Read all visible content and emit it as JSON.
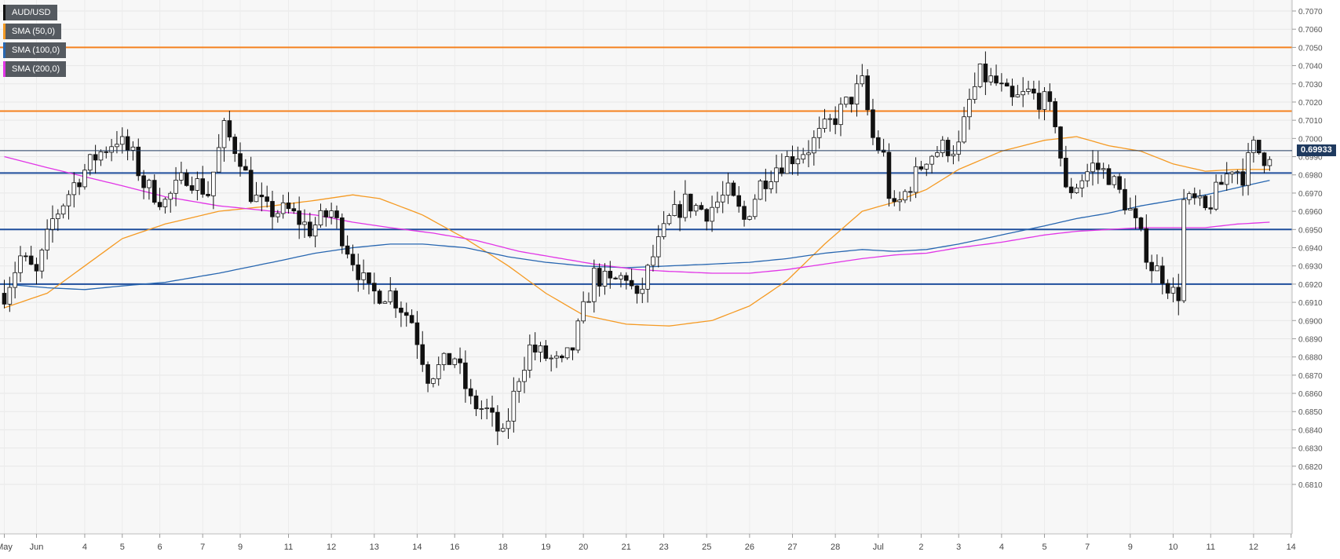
{
  "chart_data": {
    "type": "candlestick",
    "instrument": "AUD/USD",
    "timeframe_note": "4-hour candles",
    "ylim": [
      0.6805,
      0.7075
    ],
    "y_ticks": [
      "0.7070",
      "0.7060",
      "0.7050",
      "0.7040",
      "0.7030",
      "0.7020",
      "0.7010",
      "0.7000",
      "0.6990",
      "0.6980",
      "0.6970",
      "0.6960",
      "0.6950",
      "0.6940",
      "0.6930",
      "0.6920",
      "0.6910",
      "0.6900",
      "0.6890",
      "0.6880",
      "0.6870",
      "0.6860",
      "0.6850",
      "0.6840",
      "0.6830",
      "0.6820",
      "0.6810"
    ],
    "x_ticks": [
      {
        "label": "May",
        "i": 0
      },
      {
        "label": "Jun",
        "i": 6
      },
      {
        "label": "4",
        "i": 15
      },
      {
        "label": "5",
        "i": 22
      },
      {
        "label": "6",
        "i": 29
      },
      {
        "label": "7",
        "i": 37
      },
      {
        "label": "9",
        "i": 44
      },
      {
        "label": "11",
        "i": 53
      },
      {
        "label": "12",
        "i": 61
      },
      {
        "label": "13",
        "i": 69
      },
      {
        "label": "14",
        "i": 77
      },
      {
        "label": "16",
        "i": 84
      },
      {
        "label": "18",
        "i": 93
      },
      {
        "label": "19",
        "i": 101
      },
      {
        "label": "20",
        "i": 108
      },
      {
        "label": "21",
        "i": 116
      },
      {
        "label": "23",
        "i": 123
      },
      {
        "label": "25",
        "i": 131
      },
      {
        "label": "26",
        "i": 139
      },
      {
        "label": "27",
        "i": 147
      },
      {
        "label": "28",
        "i": 155
      },
      {
        "label": "Jul",
        "i": 163
      },
      {
        "label": "2",
        "i": 171
      },
      {
        "label": "3",
        "i": 178
      },
      {
        "label": "4",
        "i": 186
      },
      {
        "label": "5",
        "i": 194
      },
      {
        "label": "7",
        "i": 202
      },
      {
        "label": "9",
        "i": 210
      },
      {
        "label": "10",
        "i": 218
      },
      {
        "label": "11",
        "i": 225
      },
      {
        "label": "12",
        "i": 233
      },
      {
        "label": "14",
        "i": 240
      }
    ],
    "candle_count": 237,
    "path_points": [
      [
        0,
        0.6915
      ],
      [
        3,
        0.6935
      ],
      [
        6,
        0.6925
      ],
      [
        9,
        0.6955
      ],
      [
        13,
        0.6975
      ],
      [
        17,
        0.699
      ],
      [
        21,
        0.7
      ],
      [
        24,
        0.699
      ],
      [
        26,
        0.6975
      ],
      [
        30,
        0.6965
      ],
      [
        34,
        0.698
      ],
      [
        38,
        0.697
      ],
      [
        41,
        0.7005
      ],
      [
        44,
        0.699
      ],
      [
        46,
        0.697
      ],
      [
        49,
        0.696
      ],
      [
        53,
        0.696
      ],
      [
        57,
        0.695
      ],
      [
        61,
        0.696
      ],
      [
        64,
        0.694
      ],
      [
        68,
        0.6915
      ],
      [
        72,
        0.6915
      ],
      [
        76,
        0.69
      ],
      [
        79,
        0.687
      ],
      [
        84,
        0.688
      ],
      [
        87,
        0.6855
      ],
      [
        90,
        0.685
      ],
      [
        93,
        0.6835
      ],
      [
        96,
        0.687
      ],
      [
        98,
        0.6885
      ],
      [
        101,
        0.688
      ],
      [
        104,
        0.6875
      ],
      [
        106,
        0.6885
      ],
      [
        108,
        0.6905
      ],
      [
        110,
        0.6925
      ],
      [
        113,
        0.692
      ],
      [
        116,
        0.6925
      ],
      [
        118,
        0.691
      ],
      [
        121,
        0.6935
      ],
      [
        124,
        0.6955
      ],
      [
        127,
        0.6965
      ],
      [
        131,
        0.696
      ],
      [
        135,
        0.697
      ],
      [
        138,
        0.6955
      ],
      [
        141,
        0.6975
      ],
      [
        144,
        0.6985
      ],
      [
        147,
        0.699
      ],
      [
        150,
        0.6995
      ],
      [
        153,
        0.7005
      ],
      [
        156,
        0.7015
      ],
      [
        160,
        0.703
      ],
      [
        162,
        0.7
      ],
      [
        164,
        0.699
      ],
      [
        165,
        0.697
      ],
      [
        166,
        0.696
      ],
      [
        169,
        0.6975
      ],
      [
        172,
        0.699
      ],
      [
        175,
        0.6995
      ],
      [
        178,
        0.6995
      ],
      [
        180,
        0.702
      ],
      [
        182,
        0.7035
      ],
      [
        185,
        0.703
      ],
      [
        188,
        0.702
      ],
      [
        191,
        0.7025
      ],
      [
        194,
        0.702
      ],
      [
        196,
        0.701
      ],
      [
        198,
        0.697
      ],
      [
        200,
        0.6975
      ],
      [
        203,
        0.6985
      ],
      [
        206,
        0.698
      ],
      [
        208,
        0.697
      ],
      [
        210,
        0.696
      ],
      [
        212,
        0.6945
      ],
      [
        214,
        0.693
      ],
      [
        216,
        0.6925
      ],
      [
        218,
        0.6915
      ],
      [
        219,
        0.6915
      ],
      [
        220,
        0.6965
      ],
      [
        222,
        0.6965
      ],
      [
        224,
        0.696
      ],
      [
        227,
        0.6975
      ],
      [
        229,
        0.6985
      ],
      [
        231,
        0.698
      ],
      [
        233,
        0.6995
      ],
      [
        235,
        0.699
      ],
      [
        236,
        0.6993
      ]
    ],
    "series": [
      {
        "name": "SMA (50,0)",
        "color": "#f59a23",
        "points": [
          [
            0,
            0.6907
          ],
          [
            8,
            0.6915
          ],
          [
            15,
            0.693
          ],
          [
            22,
            0.6945
          ],
          [
            30,
            0.6953
          ],
          [
            40,
            0.696
          ],
          [
            50,
            0.6963
          ],
          [
            58,
            0.6966
          ],
          [
            65,
            0.6969
          ],
          [
            70,
            0.6967
          ],
          [
            78,
            0.6958
          ],
          [
            86,
            0.6945
          ],
          [
            94,
            0.693
          ],
          [
            101,
            0.6915
          ],
          [
            108,
            0.6903
          ],
          [
            116,
            0.6898
          ],
          [
            124,
            0.6897
          ],
          [
            132,
            0.69
          ],
          [
            139,
            0.6908
          ],
          [
            146,
            0.6922
          ],
          [
            153,
            0.6942
          ],
          [
            160,
            0.696
          ],
          [
            166,
            0.6965
          ],
          [
            172,
            0.6972
          ],
          [
            178,
            0.6983
          ],
          [
            186,
            0.6993
          ],
          [
            194,
            0.6999
          ],
          [
            200,
            0.7001
          ],
          [
            206,
            0.6996
          ],
          [
            212,
            0.6993
          ],
          [
            218,
            0.6986
          ],
          [
            224,
            0.6982
          ],
          [
            230,
            0.6983
          ],
          [
            236,
            0.6983
          ]
        ]
      },
      {
        "name": "SMA (100,0)",
        "color": "#2766b0",
        "points": [
          [
            0,
            0.692
          ],
          [
            8,
            0.6918
          ],
          [
            15,
            0.6917
          ],
          [
            22,
            0.6919
          ],
          [
            30,
            0.6921
          ],
          [
            40,
            0.6926
          ],
          [
            50,
            0.6932
          ],
          [
            58,
            0.6937
          ],
          [
            65,
            0.694
          ],
          [
            72,
            0.6942
          ],
          [
            78,
            0.6942
          ],
          [
            86,
            0.694
          ],
          [
            94,
            0.6935
          ],
          [
            101,
            0.6932
          ],
          [
            108,
            0.693
          ],
          [
            116,
            0.6929
          ],
          [
            124,
            0.693
          ],
          [
            132,
            0.6931
          ],
          [
            139,
            0.6932
          ],
          [
            146,
            0.6934
          ],
          [
            153,
            0.6937
          ],
          [
            160,
            0.6939
          ],
          [
            166,
            0.6938
          ],
          [
            172,
            0.6939
          ],
          [
            178,
            0.6942
          ],
          [
            186,
            0.6947
          ],
          [
            194,
            0.6952
          ],
          [
            200,
            0.6956
          ],
          [
            206,
            0.6959
          ],
          [
            212,
            0.6963
          ],
          [
            218,
            0.6966
          ],
          [
            224,
            0.6969
          ],
          [
            230,
            0.6973
          ],
          [
            236,
            0.6977
          ]
        ]
      },
      {
        "name": "SMA (200,0)",
        "color": "#e135e6",
        "points": [
          [
            0,
            0.699
          ],
          [
            8,
            0.6984
          ],
          [
            15,
            0.6979
          ],
          [
            22,
            0.6974
          ],
          [
            30,
            0.6968
          ],
          [
            40,
            0.6963
          ],
          [
            50,
            0.696
          ],
          [
            58,
            0.6958
          ],
          [
            65,
            0.6954
          ],
          [
            72,
            0.6951
          ],
          [
            80,
            0.6948
          ],
          [
            88,
            0.6944
          ],
          [
            96,
            0.6938
          ],
          [
            104,
            0.6934
          ],
          [
            110,
            0.6931
          ],
          [
            118,
            0.6928
          ],
          [
            124,
            0.6927
          ],
          [
            132,
            0.6926
          ],
          [
            139,
            0.6926
          ],
          [
            146,
            0.6928
          ],
          [
            153,
            0.6931
          ],
          [
            160,
            0.6934
          ],
          [
            166,
            0.6936
          ],
          [
            172,
            0.6937
          ],
          [
            178,
            0.694
          ],
          [
            186,
            0.6943
          ],
          [
            194,
            0.6947
          ],
          [
            200,
            0.6949
          ],
          [
            206,
            0.695
          ],
          [
            212,
            0.6951
          ],
          [
            218,
            0.6951
          ],
          [
            224,
            0.6951
          ],
          [
            230,
            0.6953
          ],
          [
            236,
            0.6954
          ]
        ]
      }
    ],
    "horizontal_levels": [
      {
        "value": 0.705,
        "color": "#f5821f"
      },
      {
        "value": 0.7015,
        "color": "#f5821f"
      },
      {
        "value": 0.6981,
        "color": "#1f4e9c"
      },
      {
        "value": 0.695,
        "color": "#1f4e9c"
      },
      {
        "value": 0.692,
        "color": "#1f4e9c"
      }
    ],
    "current_price": {
      "value": 0.69933,
      "label": "0.69933",
      "color": "#1f3a5f"
    },
    "legend": [
      {
        "label": "AUD/USD",
        "color": "#111111"
      },
      {
        "label": "SMA (50,0)",
        "color": "#f59a23"
      },
      {
        "label": "SMA (100,0)",
        "color": "#2766b0"
      },
      {
        "label": "SMA (200,0)",
        "color": "#e135e6"
      }
    ],
    "legend_position": "top-left",
    "grid": true
  }
}
